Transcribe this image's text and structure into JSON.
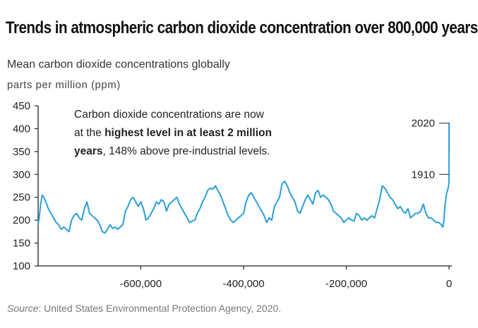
{
  "header": {
    "title": "Trends in atmospheric carbon dioxide concentration over 800,000 years",
    "subtitle": "Mean carbon dioxide concentrations globally",
    "units": "parts per million (ppm)"
  },
  "annotation": {
    "line1": "Carbon dioxide concentrations are now",
    "line2_pre": "at the ",
    "line2_bold": "highest level in at least 2 million",
    "line3_bold": "years",
    "line3_post": ", 148% above pre-industrial levels."
  },
  "markers": [
    {
      "label": "2020",
      "value": 412
    },
    {
      "label": "1910",
      "value": 300
    }
  ],
  "footer": {
    "source_prefix": "Source",
    "source_text": ": United States Environmental Protection Agency, 2020."
  },
  "colors": {
    "line": "#2a9fd8",
    "axis": "#222222",
    "text": "#222222"
  },
  "chart_data": {
    "type": "line",
    "title": "Trends in atmospheric carbon dioxide concentration over 800,000 years",
    "subtitle": "Mean carbon dioxide concentrations globally",
    "ylabel": "parts per million (ppm)",
    "xlabel": "",
    "xlim": [
      -800000,
      0
    ],
    "ylim": [
      100,
      450
    ],
    "xticks": [
      -600000,
      -400000,
      -200000,
      0
    ],
    "xtick_labels": [
      "-600,000",
      "-400,000",
      "-200,000",
      "0"
    ],
    "yticks": [
      100,
      150,
      200,
      250,
      300,
      350,
      400,
      450
    ],
    "ytick_labels": [
      "100",
      "150",
      "200",
      "250",
      "300",
      "350",
      "400",
      "450"
    ],
    "grid": false,
    "series": [
      {
        "x": [
          -800000,
          -798000,
          -795000,
          -792000,
          -788000,
          -785000,
          -780000,
          -775000,
          -770000,
          -765000,
          -760000,
          -755000,
          -750000,
          -745000,
          -740000,
          -735000,
          -730000,
          -725000,
          -720000,
          -715000,
          -710000,
          -705000,
          -700000,
          -695000,
          -690000,
          -685000,
          -680000,
          -675000,
          -670000,
          -665000,
          -660000,
          -655000,
          -650000,
          -645000,
          -640000,
          -635000,
          -630000,
          -625000,
          -620000,
          -615000,
          -610000,
          -605000,
          -600000,
          -595000,
          -590000,
          -585000,
          -580000,
          -575000,
          -570000,
          -565000,
          -560000,
          -555000,
          -550000,
          -545000,
          -540000,
          -535000,
          -530000,
          -525000,
          -520000,
          -515000,
          -510000,
          -505000,
          -500000,
          -495000,
          -490000,
          -485000,
          -480000,
          -475000,
          -470000,
          -465000,
          -460000,
          -455000,
          -450000,
          -445000,
          -440000,
          -435000,
          -430000,
          -425000,
          -420000,
          -415000,
          -410000,
          -405000,
          -400000,
          -395000,
          -390000,
          -385000,
          -380000,
          -375000,
          -370000,
          -365000,
          -360000,
          -355000,
          -350000,
          -345000,
          -340000,
          -335000,
          -330000,
          -325000,
          -320000,
          -315000,
          -310000,
          -305000,
          -300000,
          -295000,
          -290000,
          -285000,
          -280000,
          -275000,
          -270000,
          -265000,
          -260000,
          -255000,
          -250000,
          -245000,
          -240000,
          -235000,
          -230000,
          -225000,
          -220000,
          -215000,
          -210000,
          -205000,
          -200000,
          -195000,
          -190000,
          -185000,
          -180000,
          -175000,
          -170000,
          -165000,
          -160000,
          -155000,
          -150000,
          -145000,
          -140000,
          -135000,
          -130000,
          -125000,
          -120000,
          -115000,
          -110000,
          -105000,
          -100000,
          -95000,
          -90000,
          -85000,
          -80000,
          -75000,
          -70000,
          -65000,
          -60000,
          -55000,
          -50000,
          -45000,
          -40000,
          -35000,
          -30000,
          -25000,
          -20000,
          -15000,
          -12000,
          -10000,
          -8000,
          -6000,
          -4000,
          -2000,
          -1000,
          -500,
          -200,
          -110,
          -70,
          -40,
          -10,
          0
        ],
        "values": [
          190,
          205,
          235,
          255,
          248,
          240,
          225,
          215,
          205,
          195,
          190,
          180,
          185,
          180,
          175,
          200,
          210,
          215,
          205,
          200,
          225,
          240,
          215,
          210,
          205,
          200,
          190,
          175,
          172,
          180,
          190,
          182,
          185,
          180,
          185,
          190,
          220,
          230,
          245,
          250,
          240,
          230,
          240,
          225,
          200,
          205,
          215,
          225,
          240,
          235,
          245,
          240,
          220,
          235,
          240,
          245,
          250,
          235,
          225,
          215,
          205,
          195,
          198,
          200,
          215,
          225,
          240,
          250,
          265,
          270,
          268,
          275,
          265,
          255,
          240,
          225,
          210,
          200,
          195,
          200,
          205,
          210,
          215,
          240,
          255,
          260,
          250,
          240,
          230,
          220,
          210,
          195,
          205,
          200,
          230,
          240,
          250,
          280,
          285,
          275,
          260,
          250,
          240,
          220,
          215,
          230,
          245,
          255,
          245,
          235,
          260,
          265,
          250,
          255,
          250,
          245,
          235,
          220,
          215,
          210,
          205,
          195,
          200,
          205,
          200,
          198,
          215,
          210,
          200,
          205,
          200,
          205,
          210,
          205,
          225,
          245,
          275,
          270,
          260,
          250,
          245,
          235,
          225,
          230,
          220,
          215,
          225,
          205,
          210,
          215,
          215,
          220,
          235,
          215,
          205,
          205,
          200,
          195,
          195,
          190,
          185,
          200,
          230,
          250,
          262,
          268,
          275,
          280,
          285,
          300,
          340,
          380,
          405,
          412
        ]
      }
    ]
  }
}
